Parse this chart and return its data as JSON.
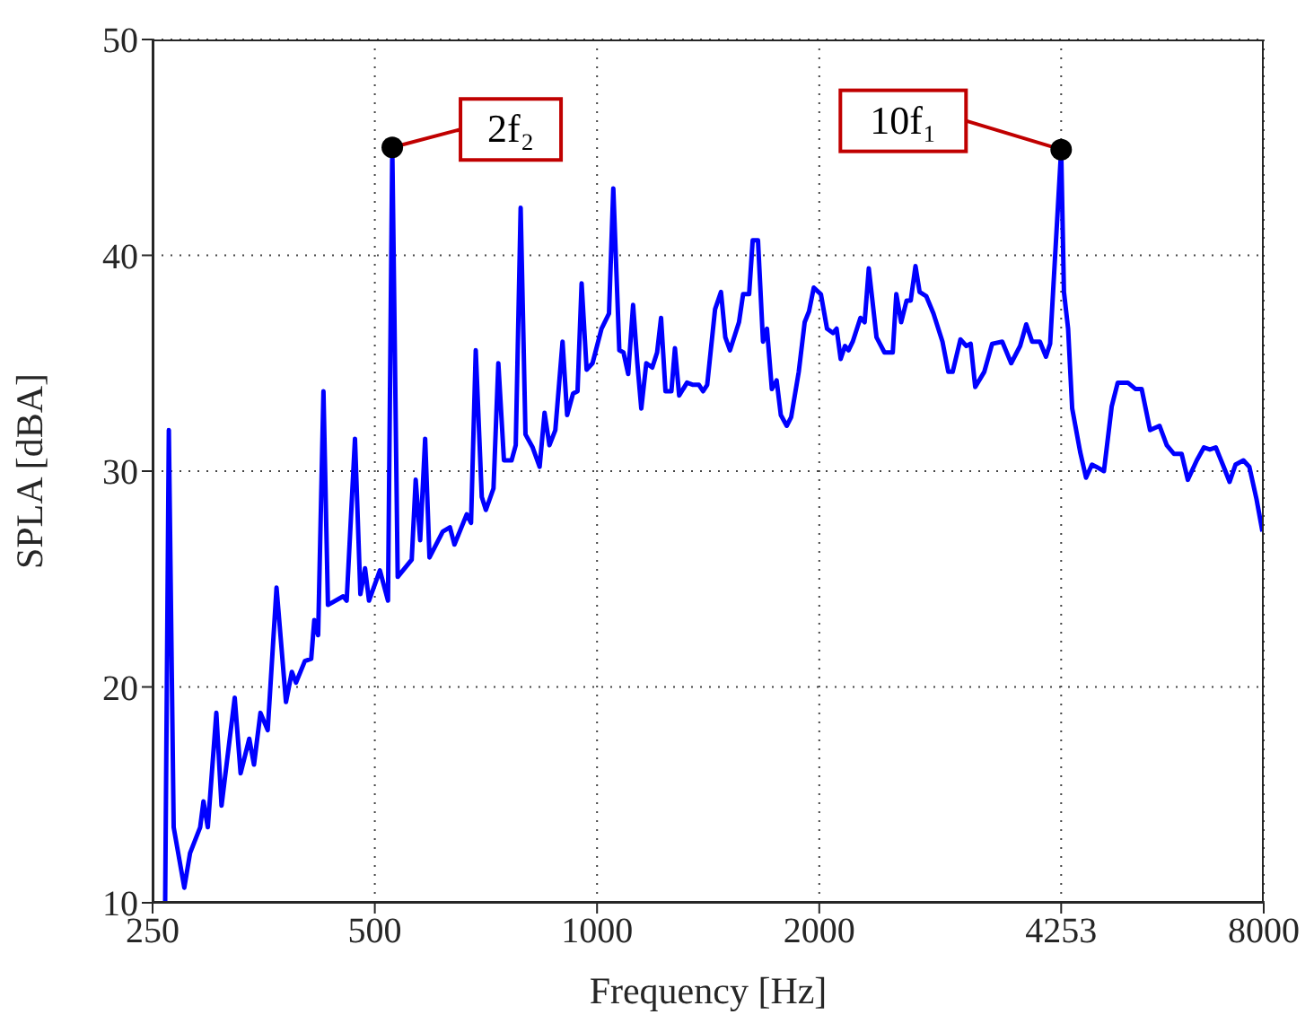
{
  "chart_data": {
    "type": "line",
    "xlabel": "Frequency [Hz]",
    "ylabel": "SPLA [dBA]",
    "log": "x",
    "grid": true,
    "marker": "none",
    "line_style": "solid",
    "xlim": [
      250,
      8000
    ],
    "xticks": [
      250,
      500,
      1000,
      2000,
      4253,
      8000
    ],
    "ylim": [
      10,
      50
    ],
    "yticks": [
      10,
      20,
      30,
      40,
      50
    ],
    "annotations": [
      {
        "text": "2f₂",
        "x": 528,
        "y": 45.0
      },
      {
        "text": "10f₁",
        "x": 4253,
        "y": 44.9
      }
    ],
    "series": [
      {
        "color": "#0000ff",
        "x": [
          260,
          263,
          267,
          276,
          281,
          290,
          293,
          297,
          305,
          310,
          323,
          329,
          338,
          343,
          350,
          358,
          368,
          379,
          386,
          391,
          402,
          410,
          414,
          419,
          426,
          432,
          453,
          458,
          470,
          478,
          485,
          491,
          508,
          521,
          528,
          537,
          561,
          568,
          576,
          585,
          593,
          618,
          632,
          641,
          666,
          675,
          685,
          698,
          707,
          724,
          735,
          748,
          766,
          776,
          788,
          800,
          818,
          836,
          849,
          862,
          878,
          898,
          911,
          928,
          941,
          953,
          968,
          986,
          1014,
          1038,
          1052,
          1072,
          1086,
          1102,
          1119,
          1134,
          1148,
          1166,
          1188,
          1206,
          1221,
          1238,
          1261,
          1275,
          1292,
          1324,
          1349,
          1374,
          1392,
          1410,
          1445,
          1472,
          1492,
          1514,
          1557,
          1577,
          1607,
          1625,
          1652,
          1678,
          1699,
          1725,
          1751,
          1774,
          1807,
          1832,
          1876,
          1911,
          1937,
          1966,
          2010,
          2049,
          2087,
          2111,
          2138,
          2167,
          2191,
          2220,
          2274,
          2304,
          2334,
          2391,
          2451,
          2515,
          2543,
          2582,
          2626,
          2660,
          2700,
          2735,
          2793,
          2856,
          2937,
          2991,
          3032,
          3106,
          3164,
          3207,
          3253,
          3346,
          3429,
          3539,
          3639,
          3742,
          3814,
          3885,
          3980,
          4056,
          4109,
          4253,
          4290,
          4346,
          4402,
          4512,
          4596,
          4681,
          4745,
          4860,
          4979,
          5074,
          5236,
          5366,
          5467,
          5612,
          5781,
          5912,
          6046,
          6193,
          6313,
          6492,
          6639,
          6762,
          6889,
          7061,
          7192,
          7326,
          7509,
          7649,
          7822,
          7968
        ],
        "values": [
          10,
          31.9,
          13.5,
          10.7,
          12.3,
          13.5,
          14.7,
          13.5,
          18.8,
          14.5,
          19.5,
          16.0,
          17.6,
          16.4,
          18.8,
          18.0,
          24.6,
          19.3,
          20.7,
          20.2,
          21.2,
          21.3,
          23.1,
          22.4,
          33.7,
          23.8,
          24.2,
          24.0,
          31.5,
          24.3,
          25.5,
          24.0,
          25.4,
          24.0,
          45.0,
          25.1,
          25.9,
          29.6,
          26.8,
          31.5,
          26.0,
          27.2,
          27.4,
          26.6,
          28.0,
          27.6,
          35.6,
          28.8,
          28.2,
          29.2,
          35.0,
          30.5,
          30.5,
          31.2,
          42.2,
          31.7,
          31.1,
          30.2,
          32.7,
          31.2,
          31.9,
          36.0,
          32.6,
          33.6,
          33.7,
          38.7,
          34.7,
          35.0,
          36.6,
          37.3,
          43.1,
          35.6,
          35.5,
          34.5,
          37.7,
          35.0,
          32.9,
          35.0,
          34.8,
          35.5,
          37.1,
          33.7,
          33.7,
          35.7,
          33.5,
          34.1,
          34.0,
          34.0,
          33.7,
          34.0,
          37.5,
          38.3,
          36.2,
          35.6,
          36.9,
          38.2,
          38.2,
          40.7,
          40.7,
          36.0,
          36.6,
          33.8,
          34.2,
          32.6,
          32.1,
          32.5,
          34.6,
          36.9,
          37.4,
          38.5,
          38.2,
          36.6,
          36.4,
          36.6,
          35.2,
          35.8,
          35.6,
          36.0,
          37.1,
          36.9,
          39.4,
          36.2,
          35.5,
          35.5,
          38.2,
          36.9,
          37.9,
          37.9,
          39.5,
          38.3,
          38.1,
          37.3,
          36.0,
          34.6,
          34.6,
          36.1,
          35.8,
          35.9,
          33.9,
          34.6,
          35.9,
          36.0,
          35.0,
          35.8,
          36.8,
          36.0,
          36.0,
          35.3,
          35.9,
          44.9,
          38.3,
          36.6,
          32.9,
          30.9,
          29.7,
          30.3,
          30.2,
          30.0,
          33.0,
          34.1,
          34.1,
          33.8,
          33.8,
          31.9,
          32.1,
          31.2,
          30.8,
          30.8,
          29.6,
          30.5,
          31.1,
          31.0,
          31.1,
          30.2,
          29.5,
          30.3,
          30.5,
          30.2,
          28.7,
          27.2
        ]
      }
    ]
  }
}
